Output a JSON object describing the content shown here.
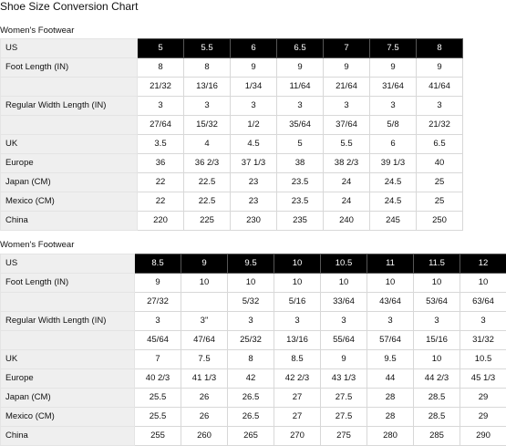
{
  "page_title": "Shoe Size Conversion Chart",
  "tables": [
    {
      "title": "Women's Footwear",
      "rows": [
        {
          "label": "US",
          "header": true,
          "cells": [
            "5",
            "5.5",
            "6",
            "6.5",
            "7",
            "7.5",
            "8"
          ]
        },
        {
          "label": "Foot Length (IN)",
          "cells": [
            "8",
            "8",
            "9",
            "9",
            "9",
            "9",
            "9"
          ]
        },
        {
          "label": "",
          "cells": [
            "21/32",
            "13/16",
            "1/34",
            "11/64",
            "21/64",
            "31/64",
            "41/64"
          ]
        },
        {
          "label": "Regular Width Length (IN)",
          "cells": [
            "3",
            "3",
            "3",
            "3",
            "3",
            "3",
            "3"
          ]
        },
        {
          "label": "",
          "cells": [
            "27/64",
            "15/32",
            "1/2",
            "35/64",
            "37/64",
            "5/8",
            "21/32"
          ]
        },
        {
          "label": "UK",
          "cells": [
            "3.5",
            "4",
            "4.5",
            "5",
            "5.5",
            "6",
            "6.5"
          ]
        },
        {
          "label": "Europe",
          "cells": [
            "36",
            "36 2/3",
            "37 1/3",
            "38",
            "38 2/3",
            "39 1/3",
            "40"
          ]
        },
        {
          "label": "Japan (CM)",
          "cells": [
            "22",
            "22.5",
            "23",
            "23.5",
            "24",
            "24.5",
            "25"
          ]
        },
        {
          "label": "Mexico (CM)",
          "cells": [
            "22",
            "22.5",
            "23",
            "23.5",
            "24",
            "24.5",
            "25"
          ]
        },
        {
          "label": "China",
          "cells": [
            "220",
            "225",
            "230",
            "235",
            "240",
            "245",
            "250"
          ]
        }
      ]
    },
    {
      "title": "Women's Footwear",
      "rows": [
        {
          "label": "US",
          "header": true,
          "cells": [
            "8.5",
            "9",
            "9.5",
            "10",
            "10.5",
            "11",
            "11.5",
            "12"
          ]
        },
        {
          "label": "Foot Length (IN)",
          "cells": [
            "9",
            "10",
            "10",
            "10",
            "10",
            "10",
            "10",
            "10"
          ]
        },
        {
          "label": "",
          "cells": [
            "27/32",
            "",
            "5/32",
            "5/16",
            "33/64",
            "43/64",
            "53/64",
            "63/64"
          ]
        },
        {
          "label": "Regular Width Length (IN)",
          "cells": [
            "3",
            "3\"",
            "3",
            "3",
            "3",
            "3",
            "3",
            "3"
          ]
        },
        {
          "label": "",
          "cells": [
            "45/64",
            "47/64",
            "25/32",
            "13/16",
            "55/64",
            "57/64",
            "15/16",
            "31/32"
          ]
        },
        {
          "label": "UK",
          "cells": [
            "7",
            "7.5",
            "8",
            "8.5",
            "9",
            "9.5",
            "10",
            "10.5"
          ]
        },
        {
          "label": "Europe",
          "cells": [
            "40 2/3",
            "41 1/3",
            "42",
            "42 2/3",
            "43 1/3",
            "44",
            "44 2/3",
            "45 1/3"
          ]
        },
        {
          "label": "Japan (CM)",
          "cells": [
            "25.5",
            "26",
            "26.5",
            "27",
            "27.5",
            "28",
            "28.5",
            "29"
          ]
        },
        {
          "label": "Mexico (CM)",
          "cells": [
            "25.5",
            "26",
            "26.5",
            "27",
            "27.5",
            "28",
            "28.5",
            "29"
          ]
        },
        {
          "label": "China",
          "cells": [
            "255",
            "260",
            "265",
            "270",
            "275",
            "280",
            "285",
            "290"
          ]
        }
      ]
    }
  ]
}
